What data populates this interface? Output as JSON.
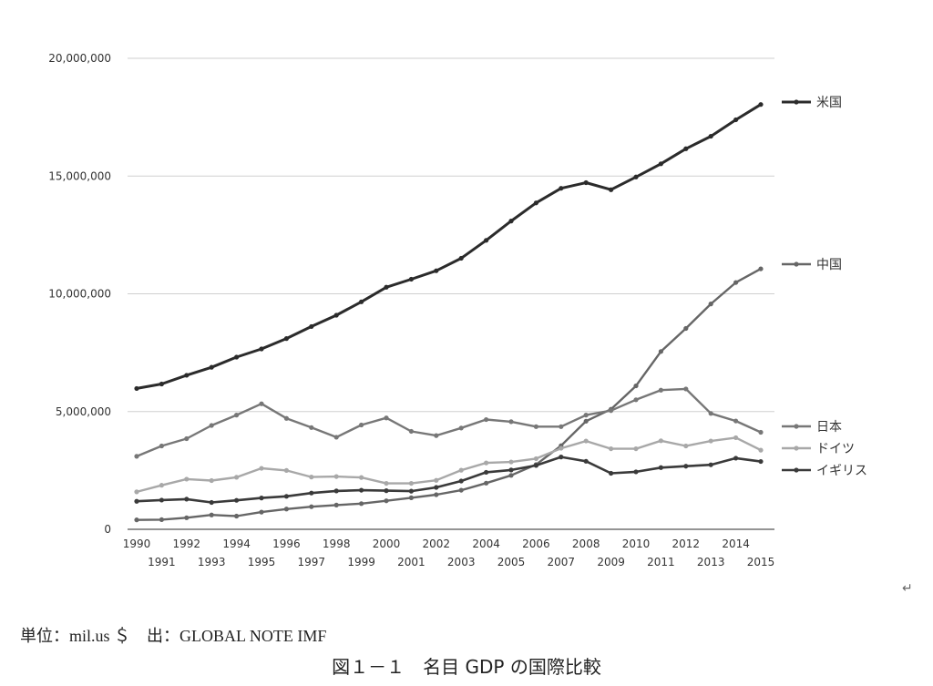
{
  "chart_data": {
    "type": "line",
    "title": "",
    "xlabel": "",
    "ylabel": "",
    "ylim": [
      0,
      20000000
    ],
    "y_ticks": [
      "0",
      "5,000,000",
      "10,000,000",
      "15,000,000",
      "20,000,000"
    ],
    "grid": true,
    "legend_position": "right",
    "x": [
      1990,
      1991,
      1992,
      1993,
      1994,
      1995,
      1996,
      1997,
      1998,
      1999,
      2000,
      2001,
      2002,
      2003,
      2004,
      2005,
      2006,
      2007,
      2008,
      2009,
      2010,
      2011,
      2012,
      2013,
      2014,
      2015
    ],
    "x_tick_labels": [
      "1990",
      "1991",
      "1992",
      "1993",
      "1994",
      "1995",
      "1996",
      "1997",
      "1998",
      "1999",
      "2000",
      "2001",
      "2002",
      "2003",
      "2004",
      "2005",
      "2006",
      "2007",
      "2008",
      "2009",
      "2010",
      "2011",
      "2012",
      "2013",
      "2014",
      "2015"
    ],
    "series": [
      {
        "name": "米国",
        "color": "#2b2b2b",
        "values": [
          5980000,
          6170000,
          6540000,
          6880000,
          7310000,
          7660000,
          8100000,
          8610000,
          9090000,
          9660000,
          10280000,
          10620000,
          10980000,
          11510000,
          12270000,
          13090000,
          13860000,
          14480000,
          14720000,
          14420000,
          14960000,
          15520000,
          16160000,
          16690000,
          17390000,
          18040000
        ]
      },
      {
        "name": "中国",
        "color": "#666666",
        "values": [
          400000,
          410000,
          490000,
          610000,
          560000,
          730000,
          860000,
          960000,
          1030000,
          1090000,
          1210000,
          1340000,
          1470000,
          1660000,
          1960000,
          2290000,
          2750000,
          3550000,
          4590000,
          5100000,
          6090000,
          7550000,
          8530000,
          9570000,
          10480000,
          11060000
        ]
      },
      {
        "name": "日本",
        "color": "#777777",
        "values": [
          3100000,
          3540000,
          3850000,
          4410000,
          4850000,
          5330000,
          4710000,
          4320000,
          3910000,
          4430000,
          4730000,
          4160000,
          3980000,
          4300000,
          4660000,
          4570000,
          4360000,
          4360000,
          4850000,
          5040000,
          5500000,
          5910000,
          5960000,
          4920000,
          4600000,
          4120000
        ]
      },
      {
        "name": "ドイツ",
        "color": "#a8a8a8",
        "values": [
          1590000,
          1870000,
          2130000,
          2070000,
          2210000,
          2590000,
          2500000,
          2220000,
          2240000,
          2200000,
          1950000,
          1950000,
          2080000,
          2510000,
          2820000,
          2860000,
          3000000,
          3440000,
          3750000,
          3420000,
          3420000,
          3760000,
          3540000,
          3750000,
          3890000,
          3360000
        ]
      },
      {
        "name": "イギリス",
        "color": "#3a3a3a",
        "values": [
          1190000,
          1240000,
          1280000,
          1140000,
          1230000,
          1330000,
          1400000,
          1540000,
          1630000,
          1660000,
          1640000,
          1620000,
          1780000,
          2050000,
          2420000,
          2520000,
          2710000,
          3070000,
          2890000,
          2380000,
          2440000,
          2620000,
          2680000,
          2740000,
          3020000,
          2880000
        ]
      }
    ]
  },
  "footer": {
    "source": "単位：mil.us ＄　出：GLOBAL NOTE IMF",
    "caption": "図１－１　名目 GDP の国際比較",
    "return_mark": "↵"
  }
}
